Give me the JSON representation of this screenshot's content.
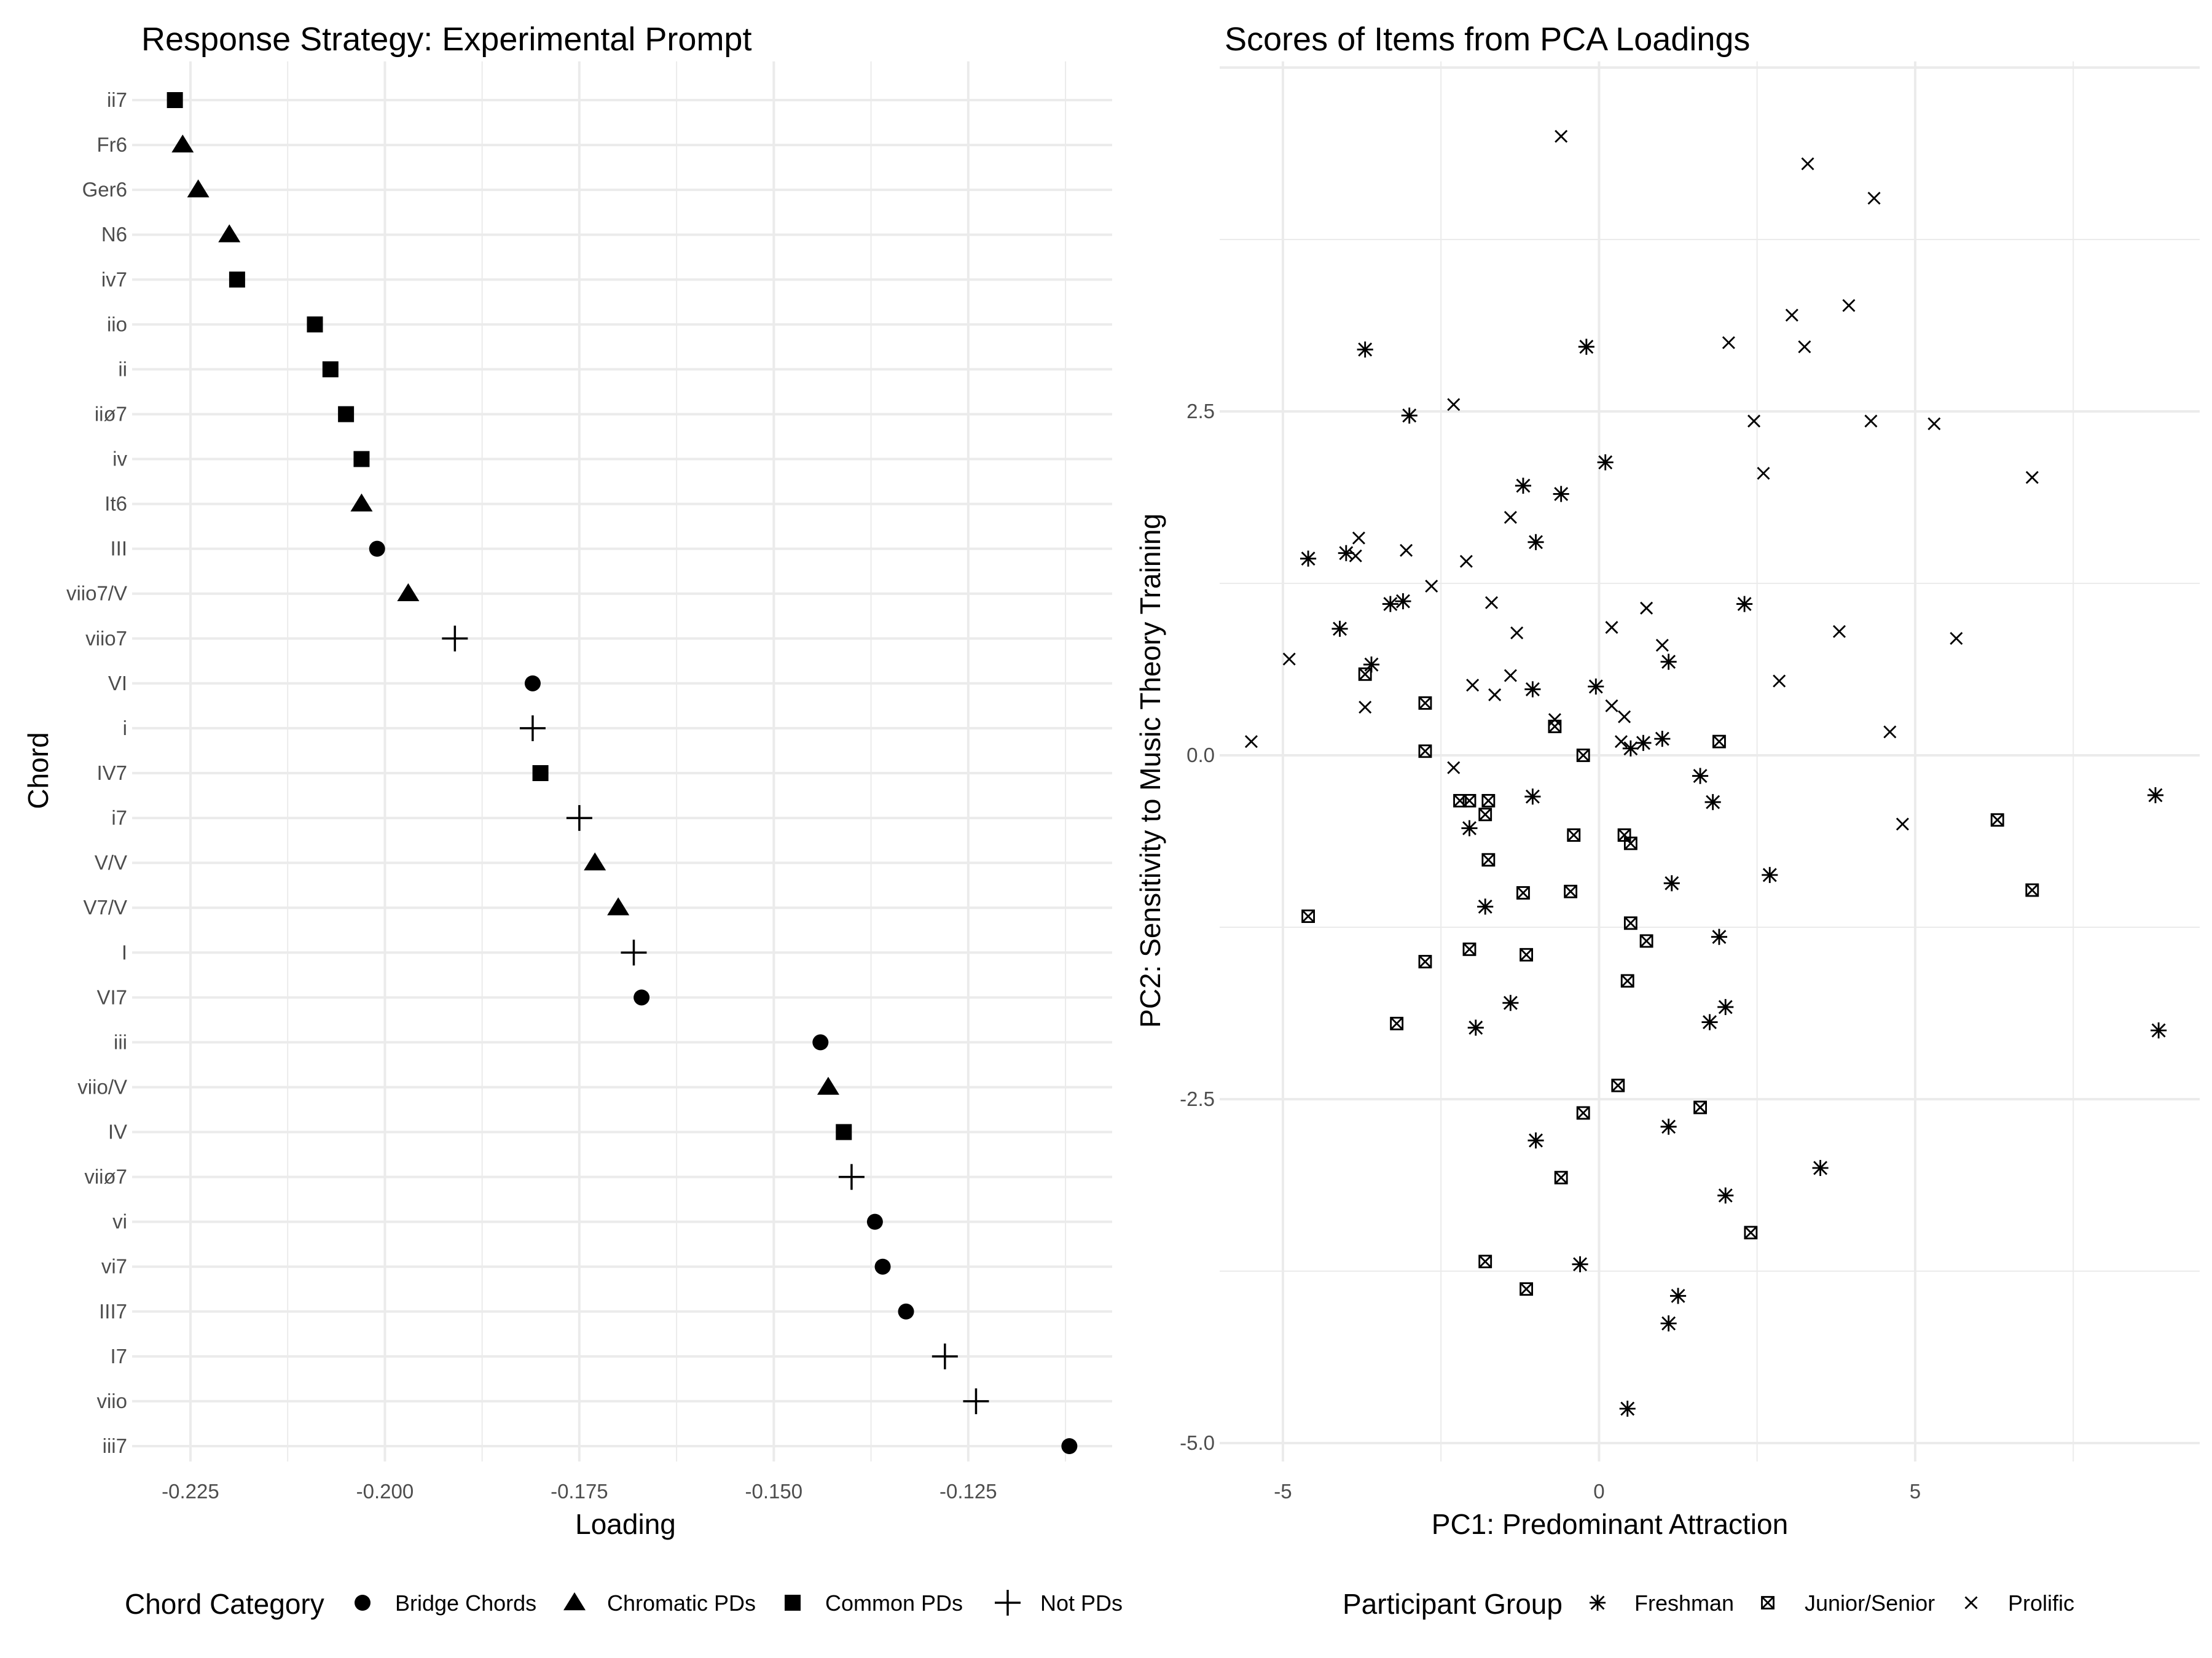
{
  "chart_data": [
    {
      "type": "scatter",
      "title": "Response Strategy: Experimental Prompt",
      "xlabel": "Loading",
      "ylabel": "Chord",
      "xlim": [
        -0.2325,
        -0.1065
      ],
      "x_ticks": [
        "-0.225",
        "-0.200",
        "-0.175",
        "-0.150",
        "-0.125"
      ],
      "grid": true,
      "legend": {
        "title": "Chord Category",
        "position": "bottom",
        "entries": [
          "Bridge Chords",
          "Chromatic PDs",
          "Common PDs",
          "Not PDs"
        ]
      },
      "categories": [
        "ii7",
        "Fr6",
        "Ger6",
        "N6",
        "iv7",
        "iio",
        "ii",
        "iiø7",
        "iv",
        "It6",
        "III",
        "viio7/V",
        "viio7",
        "VI",
        "i",
        "IV7",
        "i7",
        "V/V",
        "V7/V",
        "I",
        "VI7",
        "iii",
        "viio/V",
        "IV",
        "viiø7",
        "vi",
        "vi7",
        "III7",
        "I7",
        "viio",
        "iii7"
      ],
      "points": [
        {
          "chord": "ii7",
          "loading": -0.227,
          "category": "Common PDs"
        },
        {
          "chord": "Fr6",
          "loading": -0.226,
          "category": "Chromatic PDs"
        },
        {
          "chord": "Ger6",
          "loading": -0.224,
          "category": "Chromatic PDs"
        },
        {
          "chord": "N6",
          "loading": -0.22,
          "category": "Chromatic PDs"
        },
        {
          "chord": "iv7",
          "loading": -0.219,
          "category": "Common PDs"
        },
        {
          "chord": "iio",
          "loading": -0.209,
          "category": "Common PDs"
        },
        {
          "chord": "ii",
          "loading": -0.207,
          "category": "Common PDs"
        },
        {
          "chord": "iiø7",
          "loading": -0.205,
          "category": "Common PDs"
        },
        {
          "chord": "iv",
          "loading": -0.203,
          "category": "Common PDs"
        },
        {
          "chord": "It6",
          "loading": -0.203,
          "category": "Chromatic PDs"
        },
        {
          "chord": "III",
          "loading": -0.201,
          "category": "Bridge Chords"
        },
        {
          "chord": "viio7/V",
          "loading": -0.197,
          "category": "Chromatic PDs"
        },
        {
          "chord": "viio7",
          "loading": -0.191,
          "category": "Not PDs"
        },
        {
          "chord": "VI",
          "loading": -0.181,
          "category": "Bridge Chords"
        },
        {
          "chord": "i",
          "loading": -0.181,
          "category": "Not PDs"
        },
        {
          "chord": "IV7",
          "loading": -0.18,
          "category": "Common PDs"
        },
        {
          "chord": "i7",
          "loading": -0.175,
          "category": "Not PDs"
        },
        {
          "chord": "V/V",
          "loading": -0.173,
          "category": "Chromatic PDs"
        },
        {
          "chord": "V7/V",
          "loading": -0.17,
          "category": "Chromatic PDs"
        },
        {
          "chord": "I",
          "loading": -0.168,
          "category": "Not PDs"
        },
        {
          "chord": "VI7",
          "loading": -0.167,
          "category": "Bridge Chords"
        },
        {
          "chord": "iii",
          "loading": -0.144,
          "category": "Bridge Chords"
        },
        {
          "chord": "viio/V",
          "loading": -0.143,
          "category": "Chromatic PDs"
        },
        {
          "chord": "IV",
          "loading": -0.141,
          "category": "Common PDs"
        },
        {
          "chord": "viiø7",
          "loading": -0.14,
          "category": "Not PDs"
        },
        {
          "chord": "vi",
          "loading": -0.137,
          "category": "Bridge Chords"
        },
        {
          "chord": "vi7",
          "loading": -0.136,
          "category": "Bridge Chords"
        },
        {
          "chord": "III7",
          "loading": -0.133,
          "category": "Bridge Chords"
        },
        {
          "chord": "I7",
          "loading": -0.128,
          "category": "Not PDs"
        },
        {
          "chord": "viio",
          "loading": -0.124,
          "category": "Not PDs"
        },
        {
          "chord": "iii7",
          "loading": -0.112,
          "category": "Bridge Chords"
        }
      ]
    },
    {
      "type": "scatter",
      "title": "Scores of Items from PCA Loadings",
      "xlabel": "PC1: Predominant Attraction",
      "ylabel": "PC2: Sensitivity to Music Theory Training",
      "xlim": [
        -6.0,
        9.5
      ],
      "ylim": [
        -5.25,
        5.0
      ],
      "x_ticks": [
        -5,
        0,
        5
      ],
      "y_ticks": [
        2.5,
        0.0,
        -2.5,
        -5.0
      ],
      "y_tick_labels": [
        "2.5",
        "0.0",
        "-2.5",
        "-5.0"
      ],
      "grid": true,
      "legend": {
        "title": "Participant Group",
        "position": "bottom",
        "entries": [
          "Freshman",
          "Junior/Senior",
          "Prolific"
        ]
      },
      "series": [
        {
          "name": "Freshman",
          "x": [
            -3.7,
            -0.2,
            -3.0,
            0.1,
            -1.2,
            -0.6,
            -1.0,
            -4.6,
            -4.0,
            -3.3,
            -3.1,
            -4.1,
            -3.6,
            -1.05,
            -0.05,
            0.5,
            0.7,
            1.0,
            2.3,
            1.1,
            1.6,
            1.8,
            -2.05,
            8.8,
            -1.05,
            1.15,
            -1.8,
            1.9,
            2.7,
            -1.4,
            -1.95,
            2.0,
            1.75,
            -1.0,
            1.1,
            3.5,
            2.0,
            -0.3,
            1.25,
            1.1,
            0.45,
            8.85
          ],
          "y": [
            2.95,
            2.97,
            2.47,
            2.13,
            1.96,
            1.9,
            1.55,
            1.43,
            1.47,
            1.1,
            1.12,
            0.92,
            0.66,
            0.48,
            0.5,
            0.05,
            0.09,
            0.12,
            1.1,
            0.68,
            -0.15,
            -0.34,
            -0.53,
            -0.29,
            -0.3,
            -0.93,
            -1.1,
            -1.32,
            -0.87,
            -1.8,
            -1.98,
            -1.83,
            -1.94,
            -2.8,
            -2.7,
            -3.0,
            -3.2,
            -3.7,
            -3.93,
            -4.13,
            -4.75,
            -2.0
          ]
        },
        {
          "name": "Junior/Senior",
          "x": [
            -3.7,
            -2.75,
            -0.7,
            1.9,
            -2.75,
            -0.25,
            -2.2,
            -2.05,
            -1.75,
            -1.8,
            -0.4,
            0.4,
            0.5,
            -1.75,
            -1.2,
            -0.45,
            -4.6,
            0.5,
            0.75,
            -2.05,
            -1.15,
            -2.75,
            0.45,
            -3.2,
            0.3,
            1.6,
            -0.25,
            -0.6,
            2.4,
            -1.8,
            -1.15,
            6.3,
            6.85
          ],
          "y": [
            0.59,
            0.38,
            0.21,
            0.1,
            0.03,
            0.0,
            -0.33,
            -0.33,
            -0.33,
            -0.43,
            -0.58,
            -0.58,
            -0.64,
            -0.76,
            -1.0,
            -0.99,
            -1.17,
            -1.22,
            -1.35,
            -1.41,
            -1.45,
            -1.5,
            -1.64,
            -1.95,
            -2.4,
            -2.56,
            -2.6,
            -3.07,
            -3.47,
            -3.68,
            -3.88,
            -0.47,
            -0.98
          ]
        },
        {
          "name": "Prolific",
          "x": [
            -0.6,
            3.3,
            4.35,
            3.05,
            3.95,
            3.25,
            2.05,
            -2.3,
            2.45,
            4.3,
            5.3,
            2.6,
            6.85,
            -1.4,
            -3.8,
            -3.05,
            -3.85,
            -2.1,
            -2.65,
            -1.7,
            0.75,
            0.2,
            -1.3,
            3.8,
            1.0,
            5.65,
            2.85,
            -2.0,
            -1.65,
            -1.4,
            0.2,
            -3.7,
            0.4,
            -0.7,
            0.35,
            -4.9,
            -5.5,
            4.6,
            -2.3,
            4.8
          ],
          "y": [
            4.5,
            4.3,
            4.05,
            3.2,
            3.27,
            2.97,
            3.0,
            2.55,
            2.43,
            2.43,
            2.41,
            2.05,
            2.02,
            1.73,
            1.58,
            1.49,
            1.45,
            1.41,
            1.23,
            1.11,
            1.07,
            0.93,
            0.89,
            0.9,
            0.8,
            0.85,
            0.54,
            0.51,
            0.44,
            0.58,
            0.36,
            0.35,
            0.28,
            0.26,
            0.1,
            0.7,
            0.1,
            0.17,
            -0.09,
            -0.5
          ]
        }
      ]
    }
  ]
}
